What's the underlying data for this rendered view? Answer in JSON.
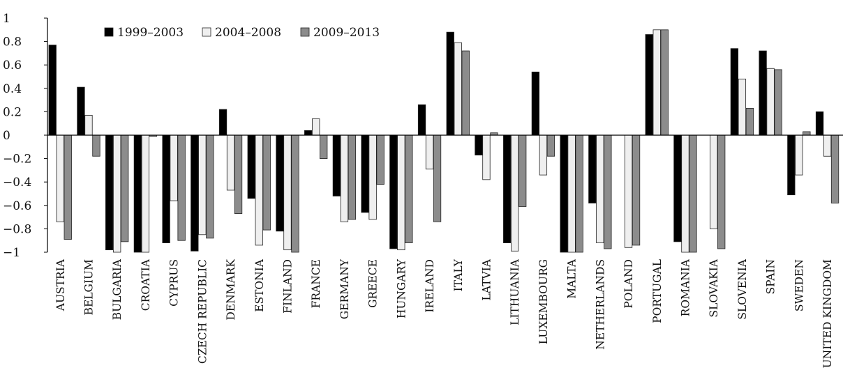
{
  "chart_data": {
    "type": "bar",
    "title": "",
    "xlabel": "",
    "ylabel": "",
    "ylim": [
      -1,
      1
    ],
    "yticks": [
      1,
      0.8,
      0.6,
      0.4,
      0.2,
      0,
      -0.2,
      -0.4,
      -0.6,
      -0.8,
      -1
    ],
    "ytick_labels": [
      "1",
      "0.8",
      "0.6",
      "0.4",
      "0.2",
      "0",
      "−0.2",
      "−0.4",
      "−0.6",
      "−0.8",
      "−1"
    ],
    "grid": false,
    "legend_position": "top-left",
    "categories": [
      "AUSTRIA",
      "BELGIUM",
      "BULGARIA",
      "CROATIA",
      "CYPRUS",
      "CZECH REPUBLIC",
      "DENMARK",
      "ESTONIA",
      "FINLAND",
      "FRANCE",
      "GERMANY",
      "GREECE",
      "HUNGARY",
      "IRELAND",
      "ITALY",
      "LATVIA",
      "LITHUANIA",
      "LUXEMBOURG",
      "MALTA",
      "NETHERLANDS",
      "POLAND",
      "PORTUGAL",
      "ROMANIA",
      "SLOVAKIA",
      "SLOVENIA",
      "SPAIN",
      "SWEDEN",
      "UNITED KINGDOM"
    ],
    "series": [
      {
        "name": "1999–2003",
        "color": "#000000",
        "values": [
          0.77,
          0.41,
          -0.98,
          -1.0,
          -0.92,
          -0.99,
          0.22,
          -0.54,
          -0.82,
          0.04,
          -0.52,
          -0.66,
          -0.97,
          0.26,
          0.88,
          -0.17,
          -0.92,
          0.54,
          -1.0,
          -0.58,
          null,
          0.86,
          -0.91,
          null,
          0.74,
          0.72,
          -0.51,
          0.2
        ]
      },
      {
        "name": "2004–2008",
        "color": "#efefef",
        "values": [
          -0.74,
          0.17,
          -1.0,
          -1.0,
          -0.56,
          -0.85,
          -0.47,
          -0.94,
          -0.98,
          0.14,
          -0.74,
          -0.72,
          -0.98,
          -0.29,
          0.79,
          -0.38,
          -0.99,
          -0.34,
          -1.0,
          -0.92,
          -0.96,
          0.9,
          -1.0,
          -0.8,
          0.48,
          0.57,
          -0.34,
          -0.18
        ]
      },
      {
        "name": "2009–2013",
        "color": "#8c8c8c",
        "values": [
          -0.89,
          -0.18,
          -0.91,
          -0.01,
          -0.9,
          -0.88,
          -0.67,
          -0.81,
          -1.0,
          -0.2,
          -0.72,
          -0.42,
          -0.92,
          -0.74,
          0.72,
          0.02,
          -0.61,
          -0.18,
          -1.0,
          -0.97,
          -0.94,
          0.9,
          -1.0,
          -0.97,
          0.23,
          0.56,
          0.03,
          -0.58
        ]
      }
    ]
  }
}
